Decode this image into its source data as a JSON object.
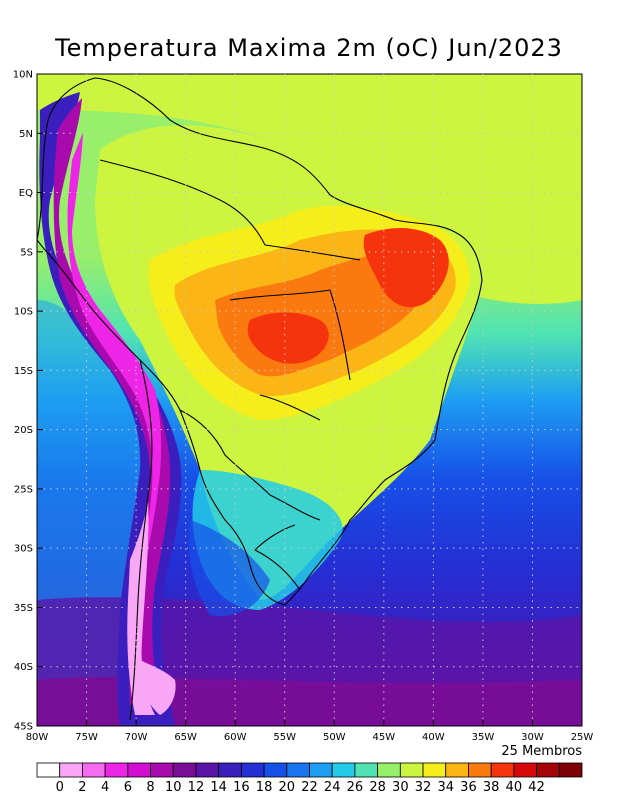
{
  "title": "Temperatura Maxima 2m (oC) Jun/2023",
  "ensemble_note": "25 Membros",
  "lat_labels": [
    "10N",
    "5N",
    "EQ",
    "5S",
    "10S",
    "15S",
    "20S",
    "25S",
    "30S",
    "35S",
    "40S",
    "45S"
  ],
  "lon_labels": [
    "80W",
    "75W",
    "70W",
    "65W",
    "60W",
    "55W",
    "50W",
    "45W",
    "40W",
    "35W",
    "30W",
    "25W"
  ],
  "colorbar": {
    "labels": [
      "0",
      "2",
      "4",
      "6",
      "8",
      "10",
      "12",
      "14",
      "16",
      "18",
      "20",
      "22",
      "24",
      "26",
      "28",
      "30",
      "32",
      "34",
      "36",
      "38",
      "40",
      "42"
    ],
    "colors": [
      "#ffffff",
      "#f9a6f7",
      "#f56cf0",
      "#ee25e6",
      "#d20fd0",
      "#a80aae",
      "#7a0c96",
      "#5a15a8",
      "#3a1fbe",
      "#2430d6",
      "#1750e8",
      "#1a74f0",
      "#1e9ef2",
      "#22cce8",
      "#4fe3b4",
      "#98ef6a",
      "#cdf53f",
      "#f5ee1a",
      "#fbb515",
      "#fb7a10",
      "#f5330c",
      "#d6080a",
      "#a40408",
      "#7c0205"
    ]
  }
}
